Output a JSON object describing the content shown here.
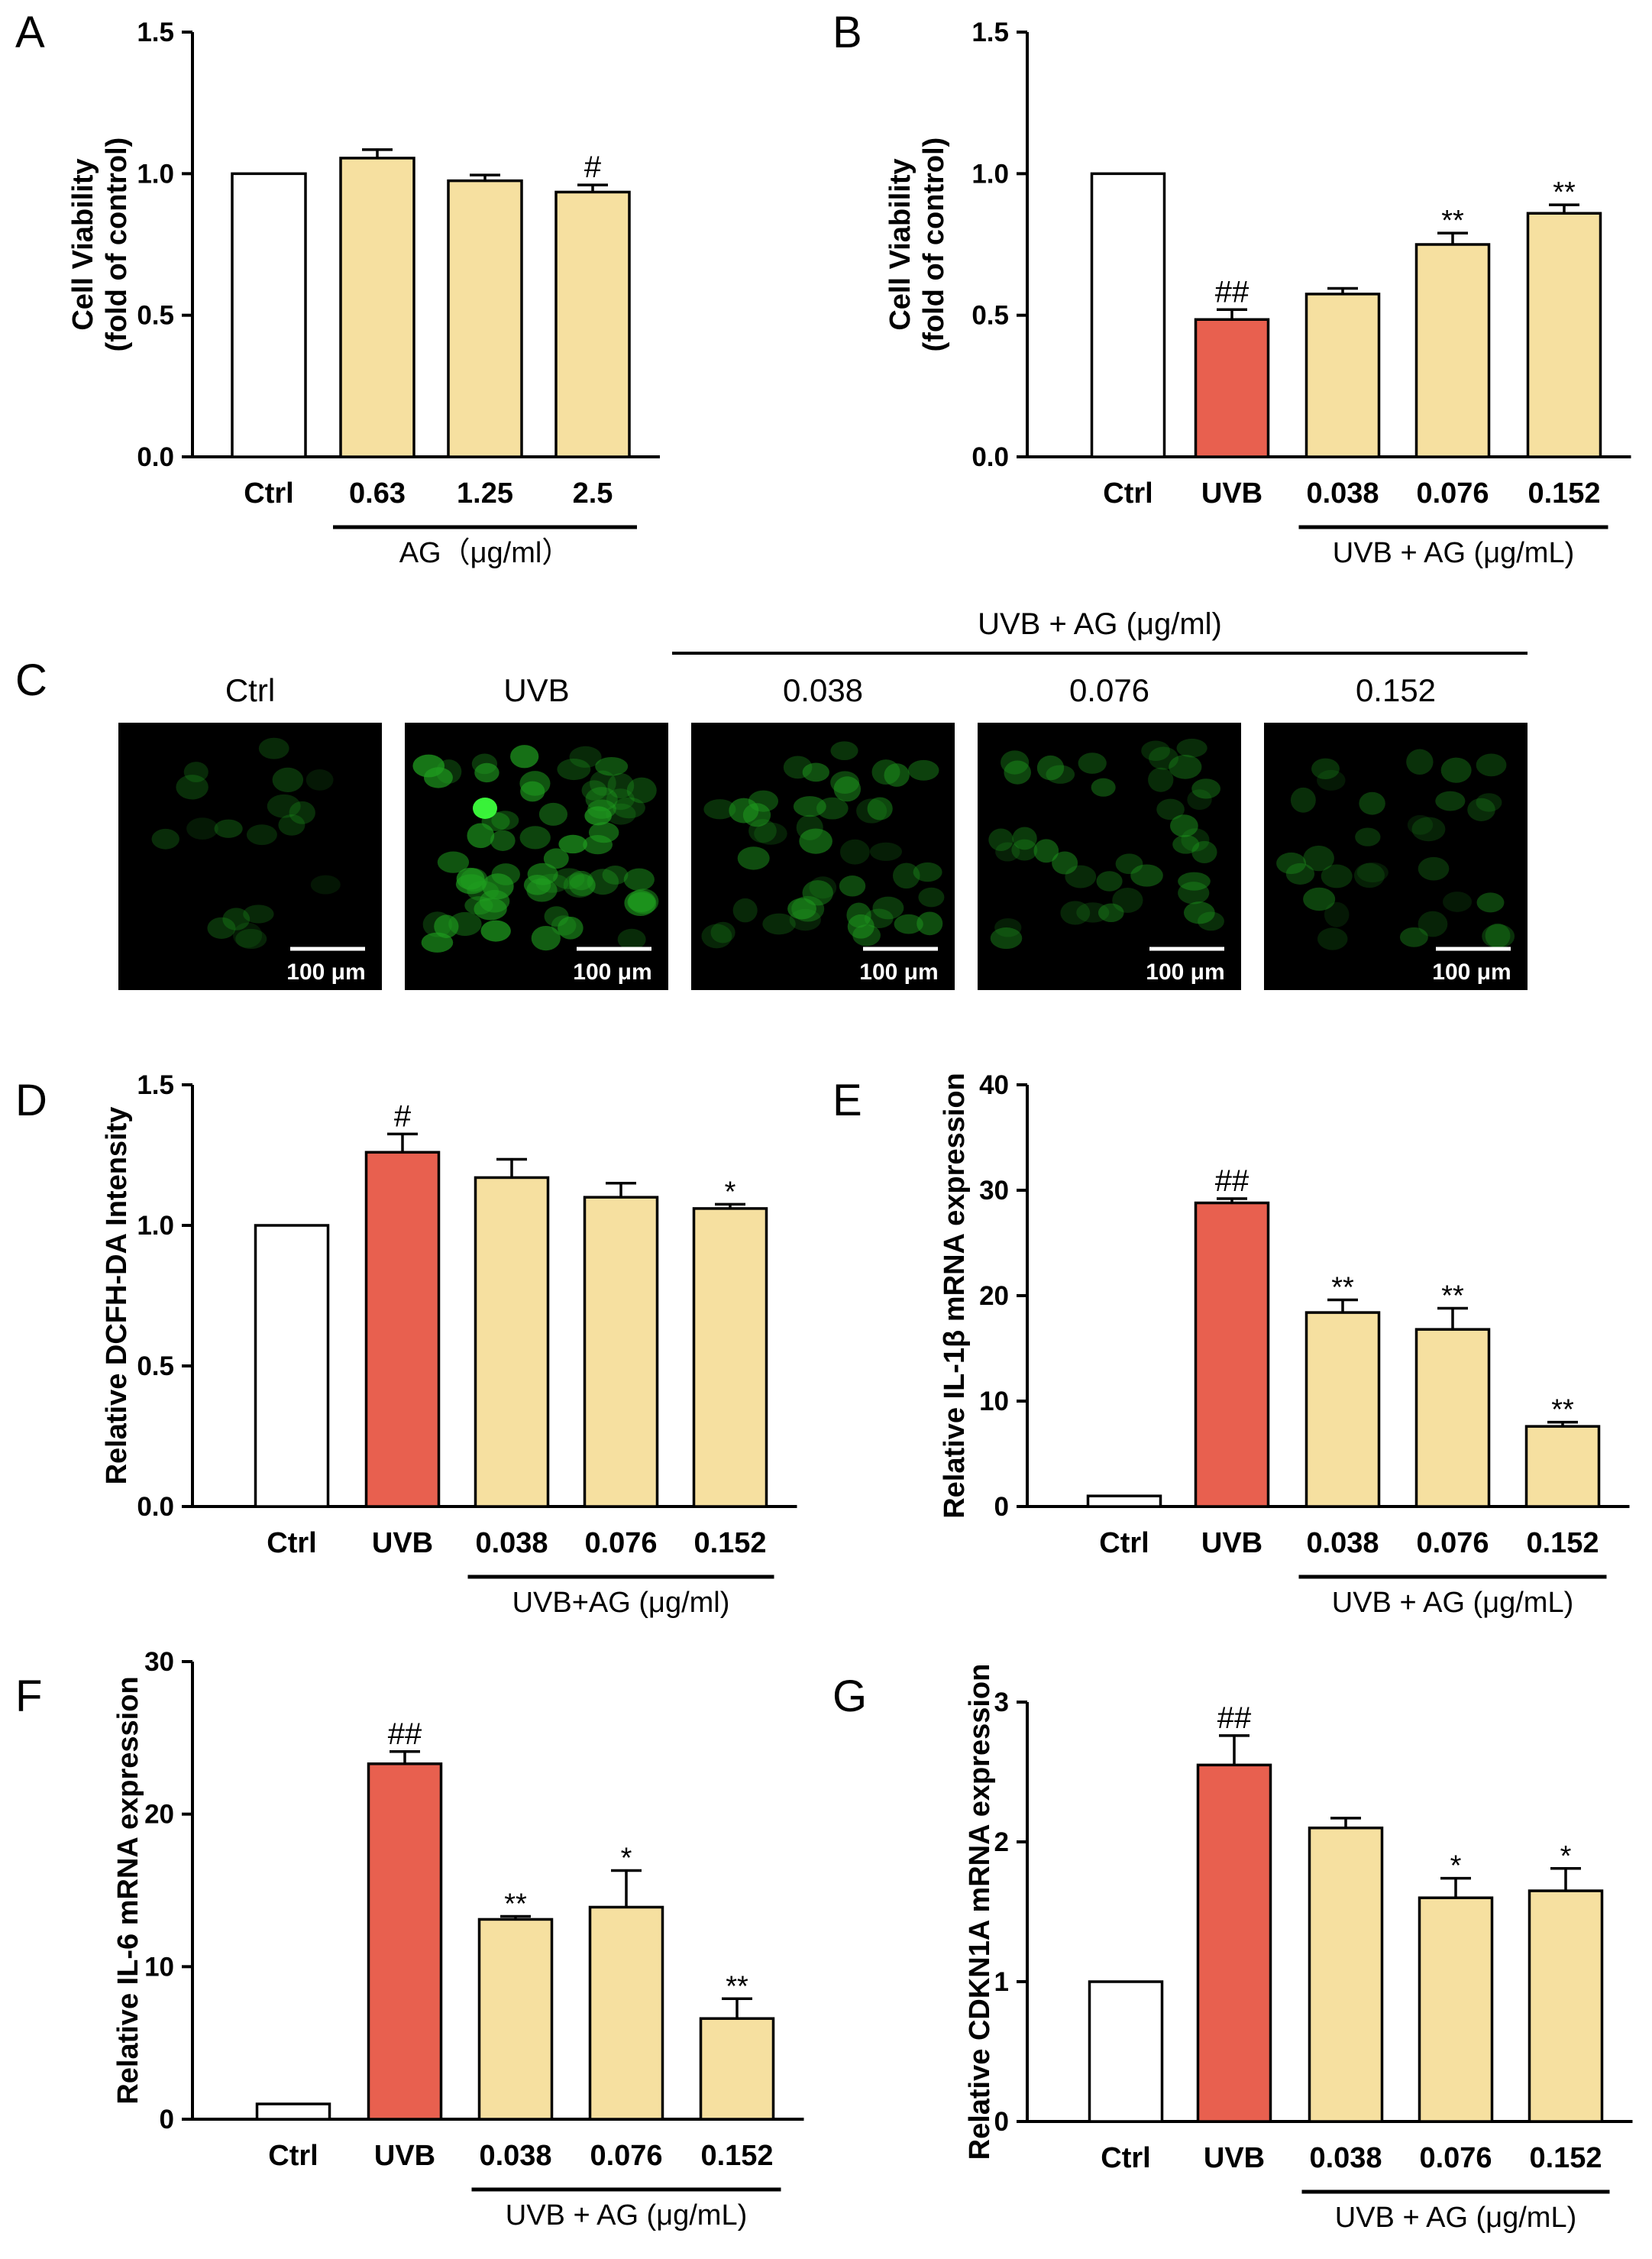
{
  "colors": {
    "ctrl": "#ffffff",
    "uvb": "#e8604f",
    "ag": "#f6e0a0",
    "stroke": "#000000",
    "green": "#1f9e1f"
  },
  "chart_data": [
    {
      "panel": "A",
      "type": "bar",
      "categories": [
        "Ctrl",
        "0.63",
        "1.25",
        "2.5"
      ],
      "values": [
        1.0,
        1.055,
        0.975,
        0.935
      ],
      "errors": [
        0,
        0.03,
        0.02,
        0.025
      ],
      "marks": [
        "",
        "",
        "",
        "#"
      ],
      "fills": [
        "ctrl",
        "ag",
        "ag",
        "ag"
      ],
      "ylabel": [
        "Cell Viability",
        "(fold of control)"
      ],
      "ylim": [
        0,
        1.5
      ],
      "yticks": [
        "0.0",
        "0.5",
        "1.0",
        "1.5"
      ],
      "group_label": "AG（μg/ml）",
      "group_span": [
        1,
        3
      ]
    },
    {
      "panel": "B",
      "type": "bar",
      "categories": [
        "Ctrl",
        "UVB",
        "0.038",
        "0.076",
        "0.152"
      ],
      "values": [
        1.0,
        0.485,
        0.575,
        0.75,
        0.86
      ],
      "errors": [
        0,
        0.035,
        0.02,
        0.04,
        0.03
      ],
      "marks": [
        "",
        "##",
        "",
        "**",
        "**"
      ],
      "fills": [
        "ctrl",
        "uvb",
        "ag",
        "ag",
        "ag"
      ],
      "ylabel": [
        "Cell Viability",
        "(fold of control)"
      ],
      "ylim": [
        0,
        1.5
      ],
      "yticks": [
        "0.0",
        "0.5",
        "1.0",
        "1.5"
      ],
      "group_label": "UVB + AG (μg/mL)",
      "group_span": [
        2,
        4
      ]
    },
    {
      "panel": "D",
      "type": "bar",
      "categories": [
        "Ctrl",
        "UVB",
        "0.038",
        "0.076",
        "0.152"
      ],
      "values": [
        1.0,
        1.26,
        1.17,
        1.1,
        1.06
      ],
      "errors": [
        0,
        0.065,
        0.065,
        0.05,
        0.015
      ],
      "marks": [
        "",
        "#",
        "",
        "",
        "*"
      ],
      "fills": [
        "ctrl",
        "uvb",
        "ag",
        "ag",
        "ag"
      ],
      "ylabel": [
        "Relative DCFH-DA Intensity"
      ],
      "ylim": [
        0,
        1.5
      ],
      "yticks": [
        "0.0",
        "0.5",
        "1.0",
        "1.5"
      ],
      "group_label": "UVB+AG (μg/ml)",
      "group_span": [
        2,
        4
      ]
    },
    {
      "panel": "E",
      "type": "bar",
      "categories": [
        "Ctrl",
        "UVB",
        "0.038",
        "0.076",
        "0.152"
      ],
      "values": [
        1.0,
        28.8,
        18.4,
        16.8,
        7.6
      ],
      "errors": [
        0,
        0.4,
        1.2,
        2.0,
        0.4
      ],
      "marks": [
        "",
        "##",
        "**",
        "**",
        "**"
      ],
      "fills": [
        "ctrl",
        "uvb",
        "ag",
        "ag",
        "ag"
      ],
      "ylabel": [
        "Relative IL-1β mRNA expression"
      ],
      "ylim": [
        0,
        40
      ],
      "yticks": [
        "0",
        "10",
        "20",
        "30",
        "40"
      ],
      "group_label": "UVB + AG (μg/mL)",
      "group_span": [
        2,
        4
      ]
    },
    {
      "panel": "F",
      "type": "bar",
      "categories": [
        "Ctrl",
        "UVB",
        "0.038",
        "0.076",
        "0.152"
      ],
      "values": [
        1.0,
        23.3,
        13.1,
        13.9,
        6.6
      ],
      "errors": [
        0,
        0.8,
        0.2,
        2.4,
        1.3
      ],
      "marks": [
        "",
        "##",
        "**",
        "*",
        "**"
      ],
      "fills": [
        "ctrl",
        "uvb",
        "ag",
        "ag",
        "ag"
      ],
      "ylabel": [
        "Relative IL-6 mRNA expression"
      ],
      "ylim": [
        0,
        30
      ],
      "yticks": [
        "0",
        "10",
        "20",
        "30"
      ],
      "group_label": "UVB + AG (μg/mL)",
      "group_span": [
        2,
        4
      ]
    },
    {
      "panel": "G",
      "type": "bar",
      "categories": [
        "Ctrl",
        "UVB",
        "0.038",
        "0.076",
        "0.152"
      ],
      "values": [
        1.0,
        2.55,
        2.1,
        1.6,
        1.65
      ],
      "errors": [
        0,
        0.21,
        0.07,
        0.14,
        0.16
      ],
      "marks": [
        "",
        "##",
        "",
        "*",
        "*"
      ],
      "fills": [
        "ctrl",
        "uvb",
        "ag",
        "ag",
        "ag"
      ],
      "ylabel": [
        "Relative CDKN1A mRNA expression"
      ],
      "ylim": [
        0,
        3
      ],
      "yticks": [
        "0",
        "1",
        "2",
        "3"
      ],
      "group_label": "UVB + AG (μg/mL)",
      "group_span": [
        2,
        4
      ]
    }
  ],
  "micrographs": {
    "panel": "C",
    "group_label": "UVB + AG  (μg/ml)",
    "scale_label": "100 μm",
    "images": [
      {
        "label": "Ctrl",
        "intensity": 0.15
      },
      {
        "label": "UVB",
        "intensity": 1.0
      },
      {
        "label": "0.038",
        "intensity": 0.6
      },
      {
        "label": "0.076",
        "intensity": 0.5
      },
      {
        "label": "0.152",
        "intensity": 0.35
      }
    ]
  }
}
